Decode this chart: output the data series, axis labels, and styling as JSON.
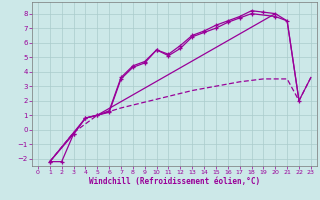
{
  "xlabel": "Windchill (Refroidissement éolien,°C)",
  "bg_color": "#cce8e8",
  "line_color": "#990099",
  "grid_color": "#aacccc",
  "xlim": [
    -0.5,
    23.5
  ],
  "ylim": [
    -2.5,
    8.8
  ],
  "yticks": [
    -2,
    -1,
    0,
    1,
    2,
    3,
    4,
    5,
    6,
    7,
    8
  ],
  "xticks": [
    0,
    1,
    2,
    3,
    4,
    5,
    6,
    7,
    8,
    9,
    10,
    11,
    12,
    13,
    14,
    15,
    16,
    17,
    18,
    19,
    20,
    21,
    22,
    23
  ],
  "line1_x": [
    1,
    2,
    3,
    4,
    5,
    6,
    7,
    8,
    9,
    10,
    11,
    12,
    13,
    14,
    15,
    16,
    17,
    18,
    19,
    20
  ],
  "line1_y": [
    -2.2,
    -2.2,
    -0.3,
    0.8,
    1.0,
    1.3,
    3.6,
    4.4,
    4.7,
    5.5,
    5.2,
    5.8,
    6.5,
    6.8,
    7.2,
    7.5,
    7.8,
    8.2,
    8.1,
    8.0
  ],
  "line2_x": [
    1,
    3,
    4,
    5,
    6,
    7,
    8,
    9,
    10,
    11,
    12,
    13,
    14,
    15,
    16,
    17,
    18,
    20,
    21,
    22
  ],
  "line2_y": [
    -2.2,
    -0.3,
    0.8,
    1.0,
    1.2,
    3.5,
    4.3,
    4.6,
    5.5,
    5.1,
    5.6,
    6.4,
    6.7,
    7.0,
    7.4,
    7.7,
    8.0,
    7.8,
    7.5,
    2.0
  ],
  "line3_x": [
    1,
    3,
    4,
    5,
    20,
    21,
    22,
    23
  ],
  "line3_y": [
    -2.2,
    -0.2,
    0.8,
    1.0,
    8.0,
    7.5,
    2.0,
    3.6
  ],
  "line4_x": [
    1,
    3,
    5,
    7,
    9,
    11,
    13,
    15,
    17,
    19,
    21,
    22,
    23
  ],
  "line4_y": [
    -2.2,
    -0.2,
    1.0,
    1.5,
    1.9,
    2.3,
    2.7,
    3.0,
    3.3,
    3.5,
    3.5,
    2.0,
    3.6
  ]
}
